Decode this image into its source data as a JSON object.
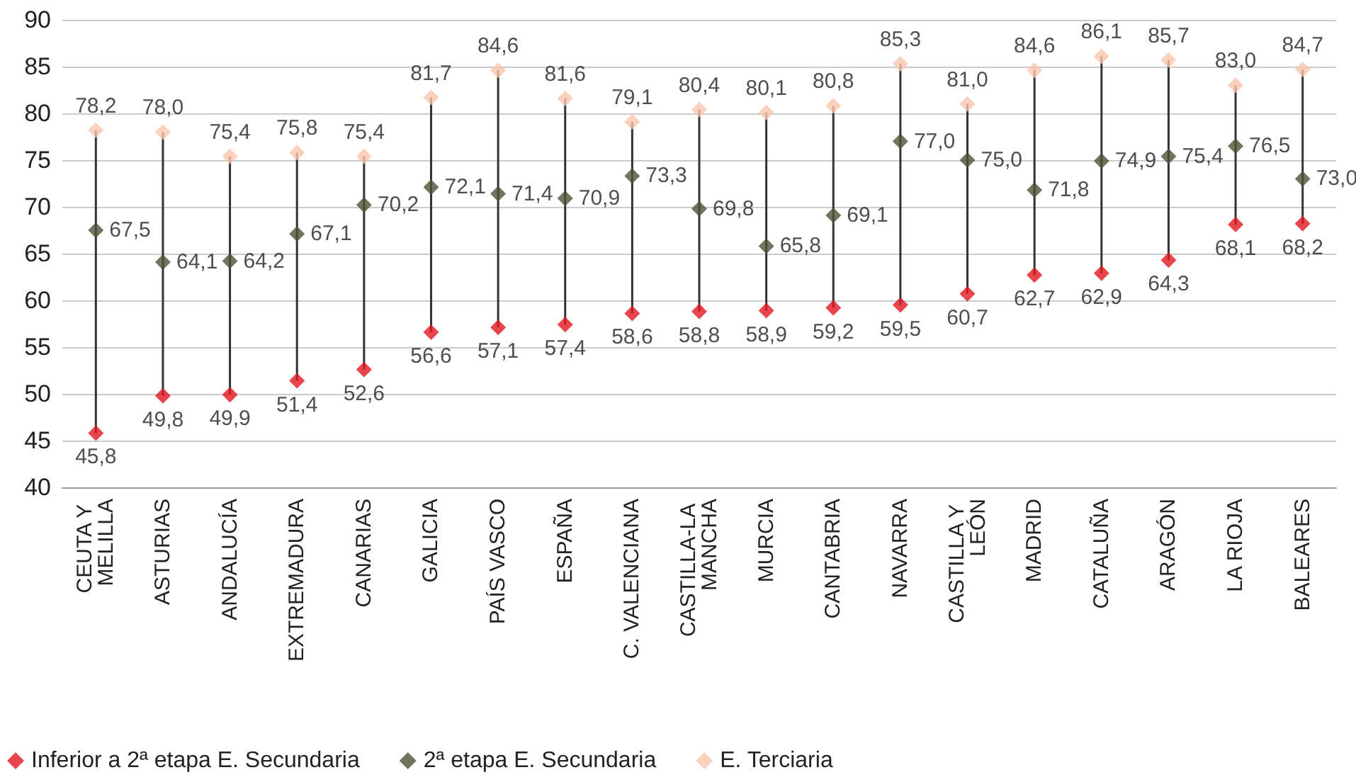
{
  "chart_data": {
    "type": "scatter",
    "categories": [
      "CEUTA Y MELILLA",
      "ASTURIAS",
      "ANDALUCÍA",
      "EXTREMADURA",
      "CANARIAS",
      "GALICIA",
      "PAÍS VASCO",
      "ESPAÑA",
      "C. VALENCIANA",
      "CASTILLA-LA MANCHA",
      "MURCIA",
      "CANTABRIA",
      "NAVARRA",
      "CASTILLA Y LEÓN",
      "MADRID",
      "CATALUÑA",
      "ARAGÓN",
      "LA RIOJA",
      "BALEARES"
    ],
    "series": [
      {
        "name": "Inferior a 2ª etapa E. Secundaria",
        "color": "#e3161f",
        "values": [
          45.8,
          49.8,
          49.9,
          51.4,
          52.6,
          56.6,
          57.1,
          57.4,
          58.6,
          58.8,
          58.9,
          59.2,
          59.5,
          60.7,
          62.7,
          62.9,
          64.3,
          68.1,
          68.2
        ],
        "value_labels": [
          "45,8",
          "49,8",
          "49,9",
          "51,4",
          "52,6",
          "56,6",
          "57,1",
          "57,4",
          "58,6",
          "58,8",
          "58,9",
          "59,2",
          "59,5",
          "60,7",
          "62,7",
          "62,9",
          "64,3",
          "68,1",
          "68,2"
        ]
      },
      {
        "name": "2ª etapa E. Secundaria",
        "color": "#4f5236",
        "values": [
          67.5,
          64.1,
          64.2,
          67.1,
          70.2,
          72.1,
          71.4,
          70.9,
          73.3,
          69.8,
          65.8,
          69.1,
          77.0,
          75.0,
          71.8,
          74.9,
          75.4,
          76.5,
          73.0
        ],
        "value_labels": [
          "67,5",
          "64,1",
          "64,2",
          "67,1",
          "70,2",
          "72,1",
          "71,4",
          "70,9",
          "73,3",
          "69,8",
          "65,8",
          "69,1",
          "77,0",
          "75,0",
          "71,8",
          "74,9",
          "75,4",
          "76,5",
          "73,0"
        ]
      },
      {
        "name": "E. Terciaria",
        "color": "#f8c5ad",
        "values": [
          78.2,
          78.0,
          75.4,
          75.8,
          75.4,
          81.7,
          84.6,
          81.6,
          79.1,
          80.4,
          80.1,
          80.8,
          85.3,
          81.0,
          84.6,
          86.1,
          85.7,
          83.0,
          84.7
        ],
        "value_labels": [
          "78,2",
          "78,0",
          "75,4",
          "75,8",
          "75,4",
          "81,7",
          "84,6",
          "81,6",
          "79,1",
          "80,4",
          "80,1",
          "80,8",
          "85,3",
          "81,0",
          "84,6",
          "86,1",
          "85,7",
          "83,0",
          "84,7"
        ]
      }
    ],
    "ylim": [
      40,
      90
    ],
    "yticks": [
      40,
      45,
      50,
      55,
      60,
      65,
      70,
      75,
      80,
      85,
      90
    ],
    "grid": "y",
    "legend": "bottom left",
    "marker": "diamond"
  }
}
